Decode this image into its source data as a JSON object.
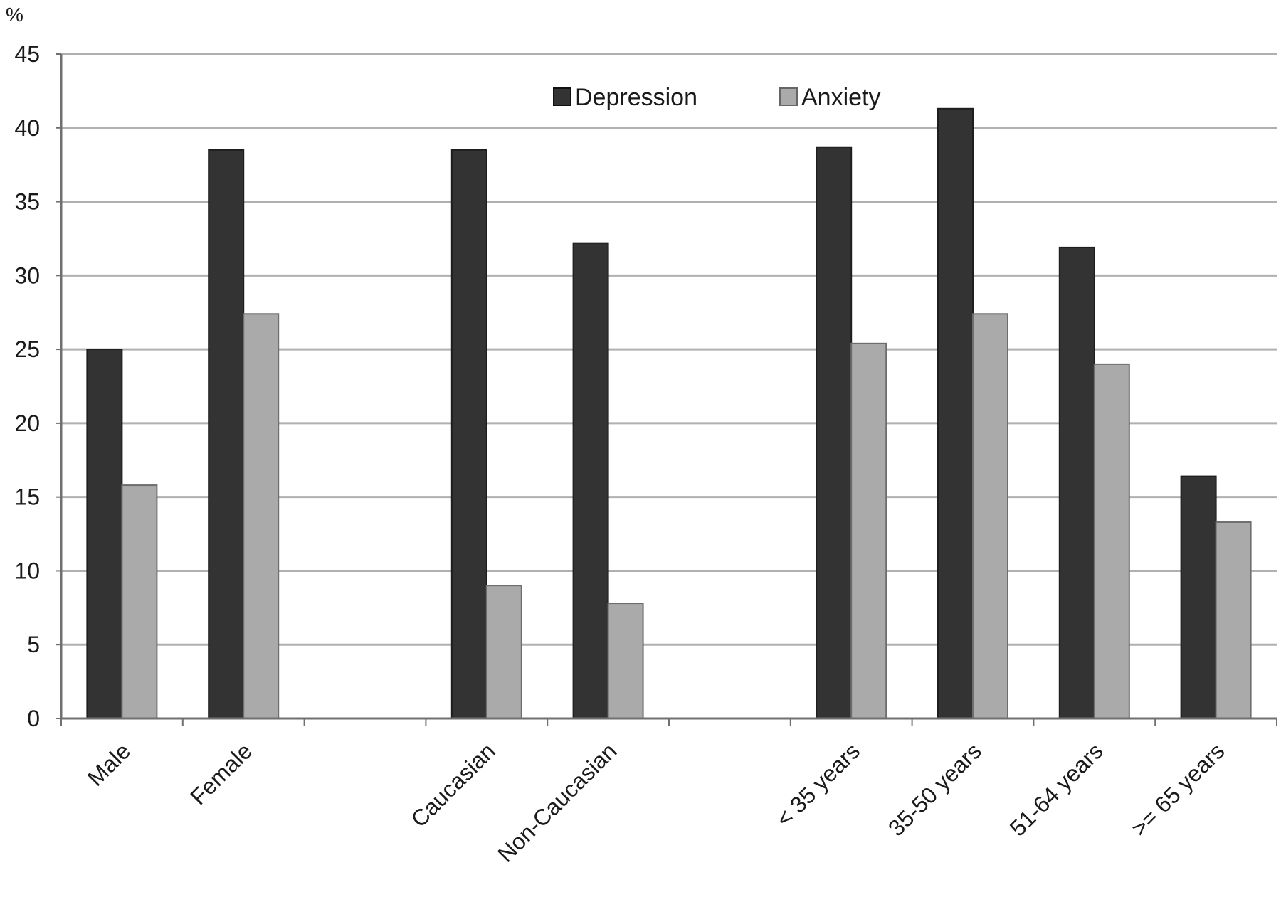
{
  "chart_data": {
    "type": "bar",
    "y_unit": "%",
    "ylim": [
      0,
      45
    ],
    "ytick_step": 5,
    "grid": true,
    "legend_position": "top-right",
    "categories": [
      "Male",
      "Female",
      "",
      "Caucasian",
      "Non-Caucasian",
      "",
      "< 35 years",
      "35-50 years",
      "51-64 years",
      ">= 65 years"
    ],
    "series": [
      {
        "name": "Depression",
        "color": "#333333",
        "values": [
          25.0,
          38.5,
          null,
          38.5,
          32.2,
          null,
          38.7,
          41.3,
          31.9,
          16.4
        ]
      },
      {
        "name": "Anxiety",
        "color": "#aaaaaa",
        "values": [
          15.8,
          27.4,
          null,
          9.0,
          7.8,
          null,
          25.4,
          27.4,
          24.0,
          13.3
        ]
      }
    ]
  }
}
